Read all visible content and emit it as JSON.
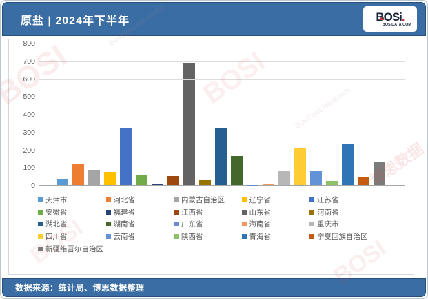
{
  "header": {
    "title": "原盐 | 2024年下半年"
  },
  "logo": {
    "name": "BOSi",
    "domain": "BOSIDATA.COM"
  },
  "chart_data": {
    "type": "bar",
    "title": "原盐 | 2024年下半年",
    "xlabel": "",
    "ylabel": "",
    "ylim": [
      0,
      800
    ],
    "yticks": [
      0,
      100,
      200,
      300,
      400,
      500,
      600,
      700,
      800
    ],
    "grid": true,
    "legend_position": "bottom",
    "categories": [
      "天津市",
      "河北省",
      "内蒙古自治区",
      "辽宁省",
      "江苏省",
      "安徽省",
      "福建省",
      "江西省",
      "山东省",
      "河南省",
      "湖北省",
      "湖南省",
      "广东省",
      "海南省",
      "重庆市",
      "四川省",
      "云南省",
      "陕西省",
      "青海省",
      "宁夏回族自治区",
      "新疆维吾尔自治区"
    ],
    "values": [
      35,
      120,
      85,
      75,
      320,
      58,
      3,
      50,
      688,
      30,
      320,
      165,
      1,
      3,
      80,
      210,
      80,
      25,
      235,
      47,
      133
    ],
    "colors": [
      "#5B9BD5",
      "#ED7D31",
      "#A5A5A5",
      "#FFC000",
      "#4472C4",
      "#70AD47",
      "#264478",
      "#9E480E",
      "#636363",
      "#997300",
      "#255E91",
      "#43682B",
      "#698ED0",
      "#F1975A",
      "#B7B7B7",
      "#FFCD33",
      "#6293D6",
      "#8CC168",
      "#2E75B6",
      "#C55A11",
      "#7B7B7B"
    ]
  },
  "footer": {
    "source": "数据来源：统计局、博思数据整理"
  },
  "watermark": {
    "brand": "BOSI",
    "domain": "BOSIDATA.COM",
    "research": "BosiData Research",
    "cn": "博思数据"
  },
  "theme": {
    "header_bg": "#3a6da3",
    "footer_bg": "#3a6da3",
    "axis_text": "#595959",
    "gridline": "#dcdcdc"
  }
}
